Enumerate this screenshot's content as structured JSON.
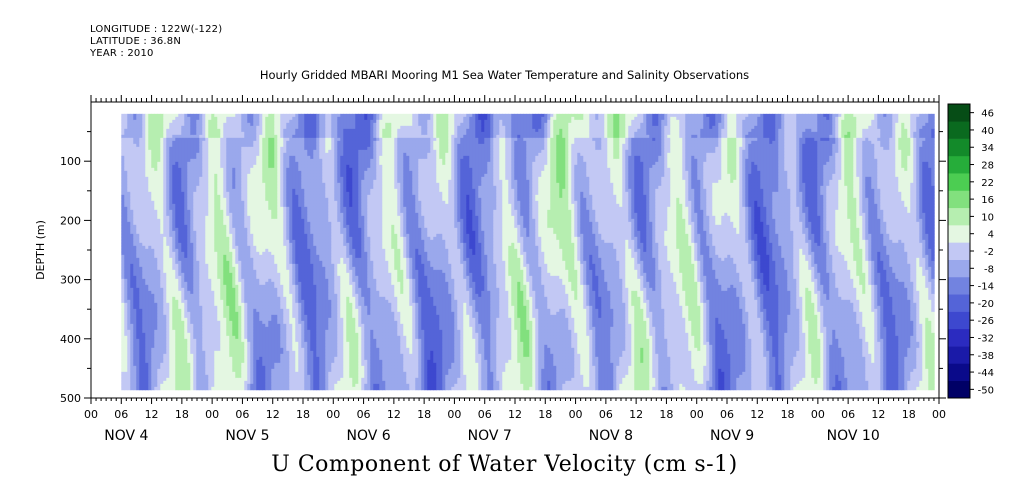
{
  "header": {
    "longitude": "LONGITUDE : 122W(-122)",
    "latitude": "LATITUDE : 36.8N",
    "year": "YEAR : 2010"
  },
  "chart_data": {
    "type": "heatmap",
    "title": "Hourly Gridded MBARI Mooring M1 Sea Water Temperature and Salinity Observations",
    "xlabel": "U Component of Water Velocity (cm s-1)",
    "ylabel": "DEPTH (m)",
    "ylim": [
      500,
      0
    ],
    "y_ticks": [
      100,
      200,
      300,
      400,
      500
    ],
    "y_tick_labels": [
      "100",
      "200",
      "300",
      "400",
      "500"
    ],
    "data_depth_range": [
      20,
      485
    ],
    "x_range_hours": [
      0,
      168
    ],
    "data_start_hour": 6,
    "hour_tick_labels": [
      "00",
      "06",
      "12",
      "18",
      "00",
      "06",
      "12",
      "18",
      "00",
      "06",
      "12",
      "18",
      "00",
      "06",
      "12",
      "18",
      "00",
      "06",
      "12",
      "18",
      "00",
      "06",
      "12",
      "18",
      "00",
      "06",
      "12",
      "18",
      "00"
    ],
    "day_labels": [
      "NOV  4",
      "NOV  5",
      "NOV  6",
      "NOV  7",
      "NOV  8",
      "NOV  9",
      "NOV 10"
    ],
    "colorbar": {
      "levels": [
        -50,
        -44,
        -38,
        -32,
        -26,
        -20,
        -14,
        -8,
        -2,
        4,
        10,
        16,
        22,
        28,
        34,
        40,
        46
      ],
      "labels": [
        "46",
        "40",
        "34",
        "28",
        "22",
        "16",
        "10",
        "4",
        "-2",
        "-8",
        "-14",
        "-20",
        "-26",
        "-32",
        "-38",
        "-44",
        "-50"
      ],
      "colors": [
        "#000066",
        "#0a0a8a",
        "#1a1aa8",
        "#2b2bc0",
        "#3d48cf",
        "#5464d8",
        "#7283e0",
        "#9aa8ec",
        "#c2c8f4",
        "#e4f7e2",
        "#b6eeb0",
        "#82e07e",
        "#4ccd52",
        "#26ad3a",
        "#138a2a",
        "#0a6a1f",
        "#064d16"
      ]
    },
    "notes": "U velocity field varies between about -20 and +20 cm/s; green (positive/eastward) and blue (negative/westward) alternating bands with depth-coherent vertical structure."
  }
}
